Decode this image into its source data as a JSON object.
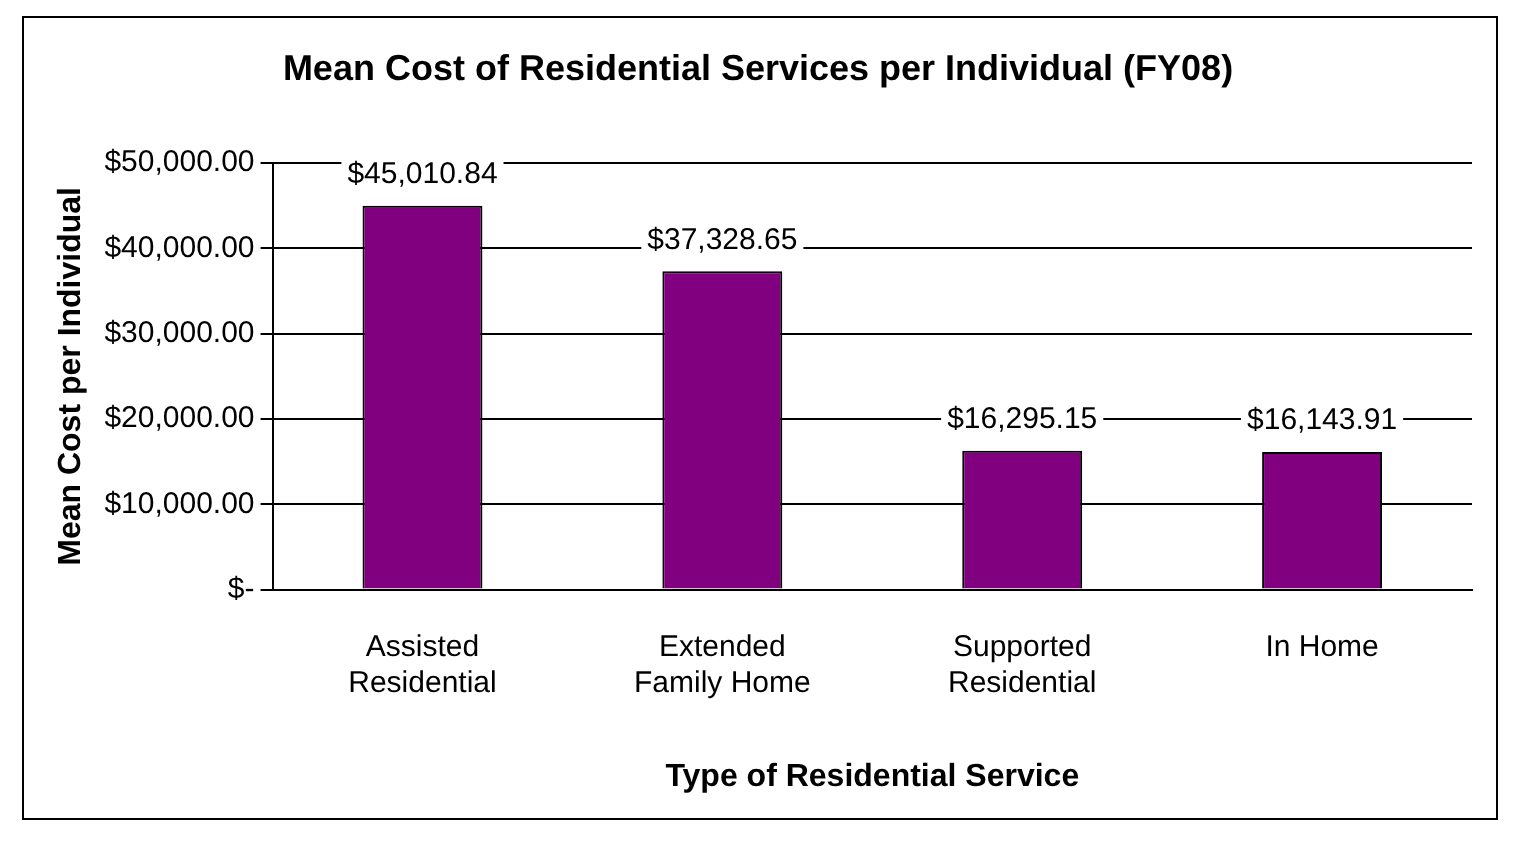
{
  "chart_data": {
    "type": "bar",
    "title": "Mean Cost of Residential Services per Individual (FY08)",
    "xlabel": "Type of Residential Service",
    "ylabel": "Mean Cost per Individual",
    "categories": [
      "Assisted Residential",
      "Extended Family Home",
      "Supported Residential",
      "In Home"
    ],
    "values": [
      45010.84,
      37328.65,
      16295.15,
      16143.91
    ],
    "value_labels": [
      "$45,010.84",
      "$37,328.65",
      "$16,295.15",
      "$16,143.91"
    ],
    "color": "#800080",
    "ylim": [
      0,
      50000
    ],
    "yticks": [
      {
        "value": 0,
        "label": "$-"
      },
      {
        "value": 10000,
        "label": "$10,000.00"
      },
      {
        "value": 20000,
        "label": "$20,000.00"
      },
      {
        "value": 30000,
        "label": "$30,000.00"
      },
      {
        "value": 40000,
        "label": "$40,000.00"
      },
      {
        "value": 50000,
        "label": "$50,000.00"
      }
    ],
    "grid": "y",
    "legend": false
  }
}
